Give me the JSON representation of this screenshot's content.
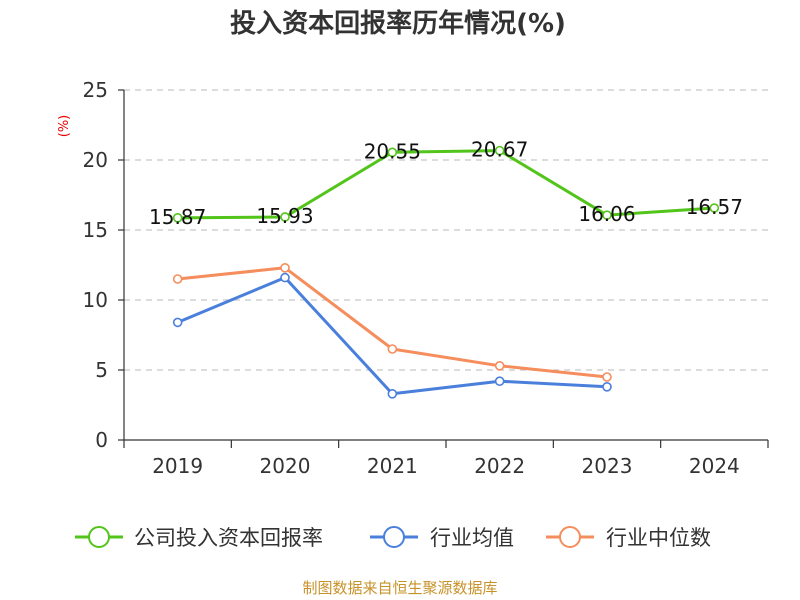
{
  "chart_data": {
    "type": "line",
    "title": "投入资本回报率历年情况(%)",
    "ylabel": "(%)",
    "xlabel": "",
    "categories": [
      "2019",
      "2020",
      "2021",
      "2022",
      "2023",
      "2024"
    ],
    "ylim": [
      0,
      25
    ],
    "yticks": [
      0,
      5,
      10,
      15,
      20,
      25
    ],
    "grid": true,
    "legend_position": "bottom",
    "series": [
      {
        "name": "公司投入资本回报率",
        "color": "#52c41a",
        "values": [
          15.87,
          15.93,
          20.55,
          20.67,
          16.06,
          16.57
        ],
        "labels": [
          "15.87",
          "15.93",
          "20.55",
          "20.67",
          "16.06",
          "16.57"
        ]
      },
      {
        "name": "行业均值",
        "color": "#4a7fdc",
        "values": [
          8.4,
          11.6,
          3.3,
          4.2,
          3.8,
          null
        ]
      },
      {
        "name": "行业中位数",
        "color": "#f58d5c",
        "values": [
          11.5,
          12.3,
          6.5,
          5.3,
          4.5,
          null
        ]
      }
    ]
  },
  "source": "制图数据来自恒生聚源数据库"
}
